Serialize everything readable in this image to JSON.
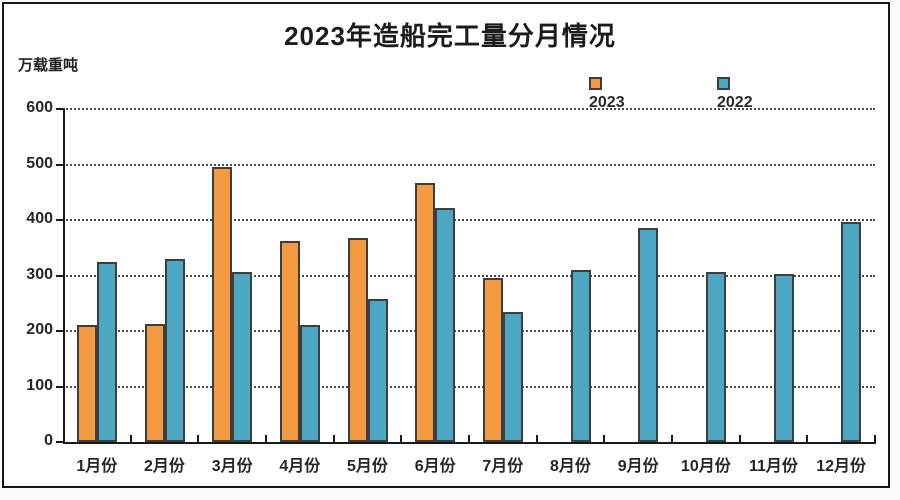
{
  "title": "2023年造船完工量分月情况",
  "unit_label": "万载重吨",
  "colors": {
    "series_2023": "#F39A43",
    "series_2022": "#4BA7C2",
    "bar_outline": "#3e3e3e",
    "axis": "#1a1a1a",
    "gridline": "#4a4a4a",
    "text": "#262626",
    "frame_border": "#161616",
    "background": "#ffffff"
  },
  "chart_data": {
    "type": "bar",
    "title": "2023年造船完工量分月情况",
    "ylabel": "万载重吨",
    "xlabel": "",
    "categories": [
      "1月份",
      "2月份",
      "3月份",
      "4月份",
      "5月份",
      "6月份",
      "7月份",
      "8月份",
      "9月份",
      "10月份",
      "11月份",
      "12月份"
    ],
    "series": [
      {
        "name": "2023",
        "color": "#F39A43",
        "values": [
          210,
          213,
          495,
          363,
          368,
          467,
          295,
          null,
          null,
          null,
          null,
          null
        ]
      },
      {
        "name": "2022",
        "color": "#4BA7C2",
        "values": [
          325,
          329,
          307,
          211,
          257,
          422,
          235,
          310,
          386,
          307,
          302,
          396
        ]
      }
    ],
    "ylim": [
      0,
      600
    ],
    "yticks": [
      0,
      100,
      200,
      300,
      400,
      500,
      600
    ],
    "grid": "horizontal-dashed",
    "legend_position": "top-right"
  }
}
